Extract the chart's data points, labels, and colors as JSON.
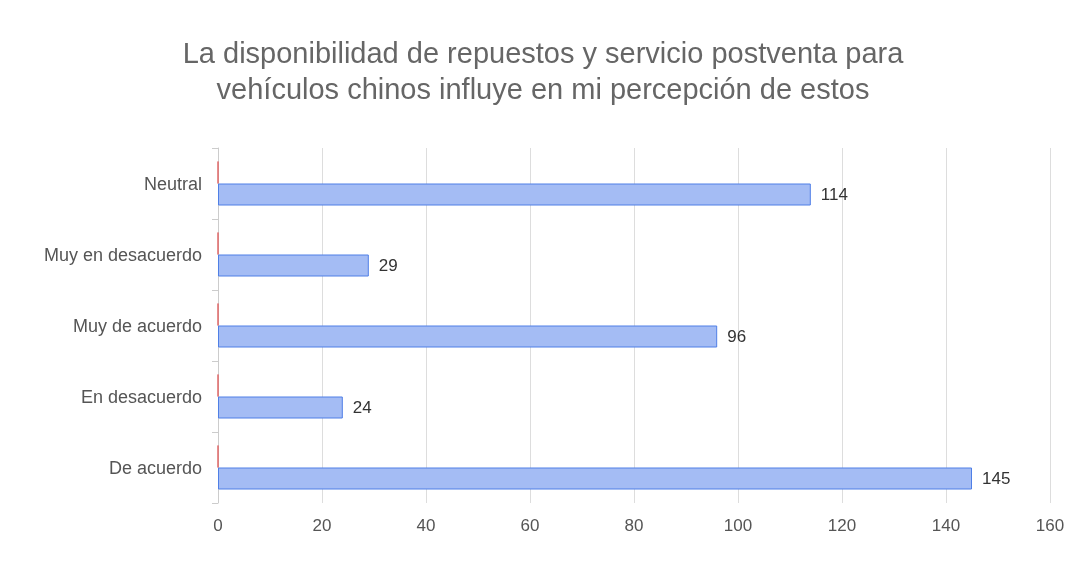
{
  "chart_data": {
    "type": "bar",
    "orientation": "horizontal",
    "title": "La disponibilidad de repuestos y servicio postventa para\nvehículos chinos influye en mi percepción de estos",
    "categories": [
      "Neutral",
      "Muy en desacuerdo",
      "Muy de acuerdo",
      "En desacuerdo",
      "De acuerdo"
    ],
    "series": [
      {
        "color": "#e06666",
        "values": [
          0,
          0,
          0,
          0,
          0
        ]
      },
      {
        "color": "#a4bcf4",
        "values": [
          114,
          29,
          96,
          24,
          145
        ],
        "value_labels": [
          "114",
          "29",
          "96",
          "24",
          "145"
        ]
      }
    ],
    "xlim": [
      0,
      160
    ],
    "xticks": [
      0,
      20,
      40,
      60,
      80,
      100,
      120,
      140,
      160
    ],
    "grid": "x"
  }
}
